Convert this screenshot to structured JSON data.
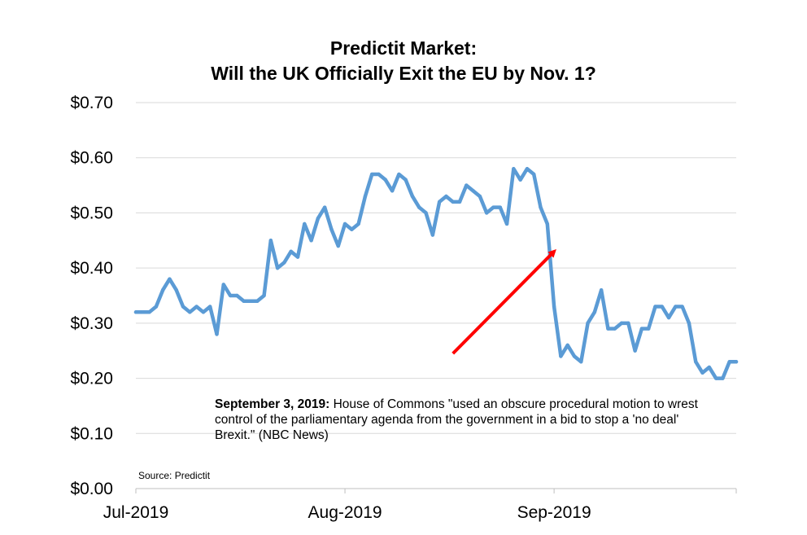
{
  "chart_data": {
    "type": "line",
    "title_line1": "Predictit Market:",
    "title_line2": "Will the UK Officially Exit the EU by Nov. 1?",
    "xlabel": "",
    "ylabel": "",
    "ylim": [
      0,
      0.7
    ],
    "yticks": [
      "$0.00",
      "$0.10",
      "$0.20",
      "$0.30",
      "$0.40",
      "$0.50",
      "$0.60",
      "$0.70"
    ],
    "xticks": [
      {
        "label": "Jul-2019",
        "index": 0
      },
      {
        "label": "Aug-2019",
        "index": 31
      },
      {
        "label": "Sep-2019",
        "index": 62
      }
    ],
    "grid": true,
    "legend": "none",
    "series": [
      {
        "color": "#5b9bd5",
        "values": [
          0.32,
          0.32,
          0.32,
          0.33,
          0.36,
          0.38,
          0.36,
          0.33,
          0.32,
          0.33,
          0.32,
          0.33,
          0.28,
          0.37,
          0.35,
          0.35,
          0.34,
          0.34,
          0.34,
          0.35,
          0.45,
          0.4,
          0.41,
          0.43,
          0.42,
          0.48,
          0.45,
          0.49,
          0.51,
          0.47,
          0.44,
          0.48,
          0.47,
          0.48,
          0.53,
          0.57,
          0.57,
          0.56,
          0.54,
          0.57,
          0.56,
          0.53,
          0.51,
          0.5,
          0.46,
          0.52,
          0.53,
          0.52,
          0.52,
          0.55,
          0.54,
          0.53,
          0.5,
          0.51,
          0.51,
          0.48,
          0.58,
          0.56,
          0.58,
          0.57,
          0.51,
          0.48,
          0.33,
          0.24,
          0.26,
          0.24,
          0.23,
          0.3,
          0.32,
          0.36,
          0.29,
          0.29,
          0.3,
          0.3,
          0.25,
          0.29,
          0.29,
          0.33,
          0.33,
          0.31,
          0.33,
          0.33,
          0.3,
          0.23,
          0.21,
          0.22,
          0.2,
          0.2,
          0.23,
          0.23
        ]
      }
    ],
    "annotation_arrow": {
      "color": "#ff0000",
      "from_index": 47,
      "from_value": 0.245,
      "to_index": 62,
      "to_value": 0.43
    },
    "annotation": {
      "bold": "September 3, 2019:",
      "text": " House of Commons \"used an obscure procedural motion to wrest control of the parliamentary agenda from the government in a bid to stop a 'no deal' Brexit.\" (NBC News)"
    },
    "source": "Source: Predictit"
  }
}
